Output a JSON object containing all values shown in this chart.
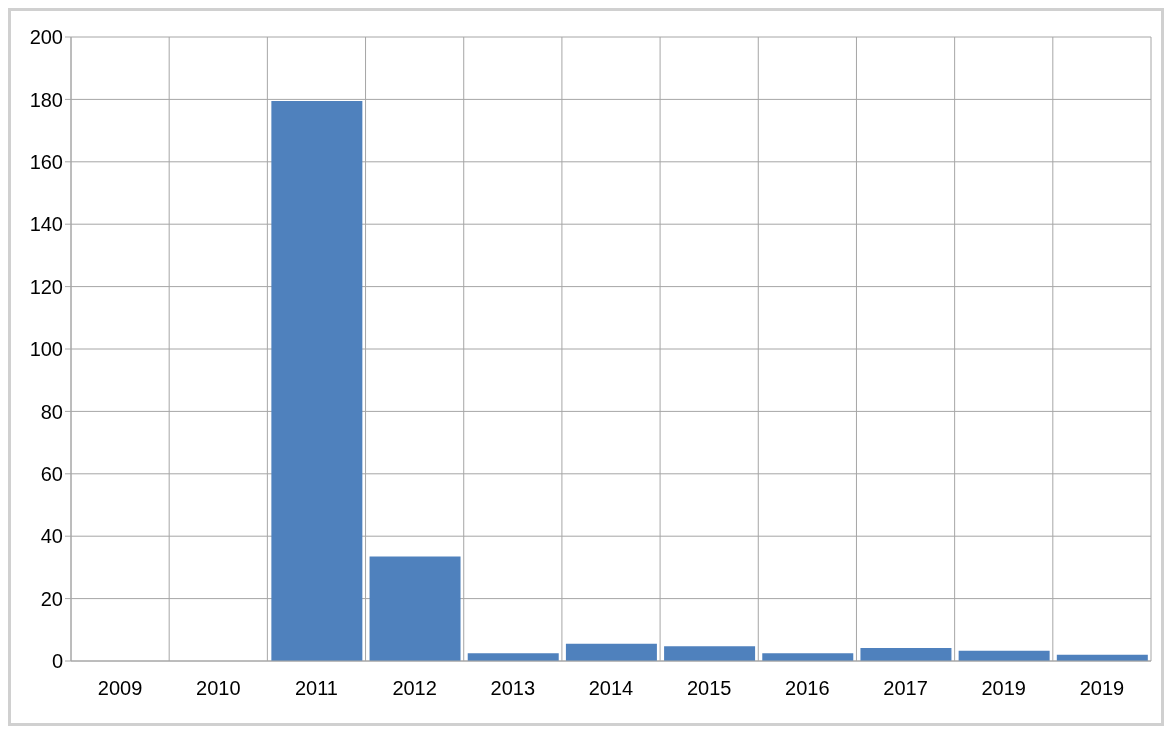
{
  "chart_data": {
    "type": "bar",
    "categories": [
      "2009",
      "2010",
      "2011",
      "2012",
      "2013",
      "2014",
      "2015",
      "2016",
      "2017",
      "2019",
      "2019"
    ],
    "values": [
      null,
      null,
      179.5,
      33.5,
      2.5,
      5.5,
      4.7,
      2.5,
      4.2,
      3.3,
      2.0
    ],
    "color": "#4f81bd",
    "ylim": [
      0,
      200
    ],
    "yticks": [
      0,
      20,
      40,
      60,
      80,
      100,
      120,
      140,
      160,
      180,
      200
    ],
    "grid": true
  }
}
